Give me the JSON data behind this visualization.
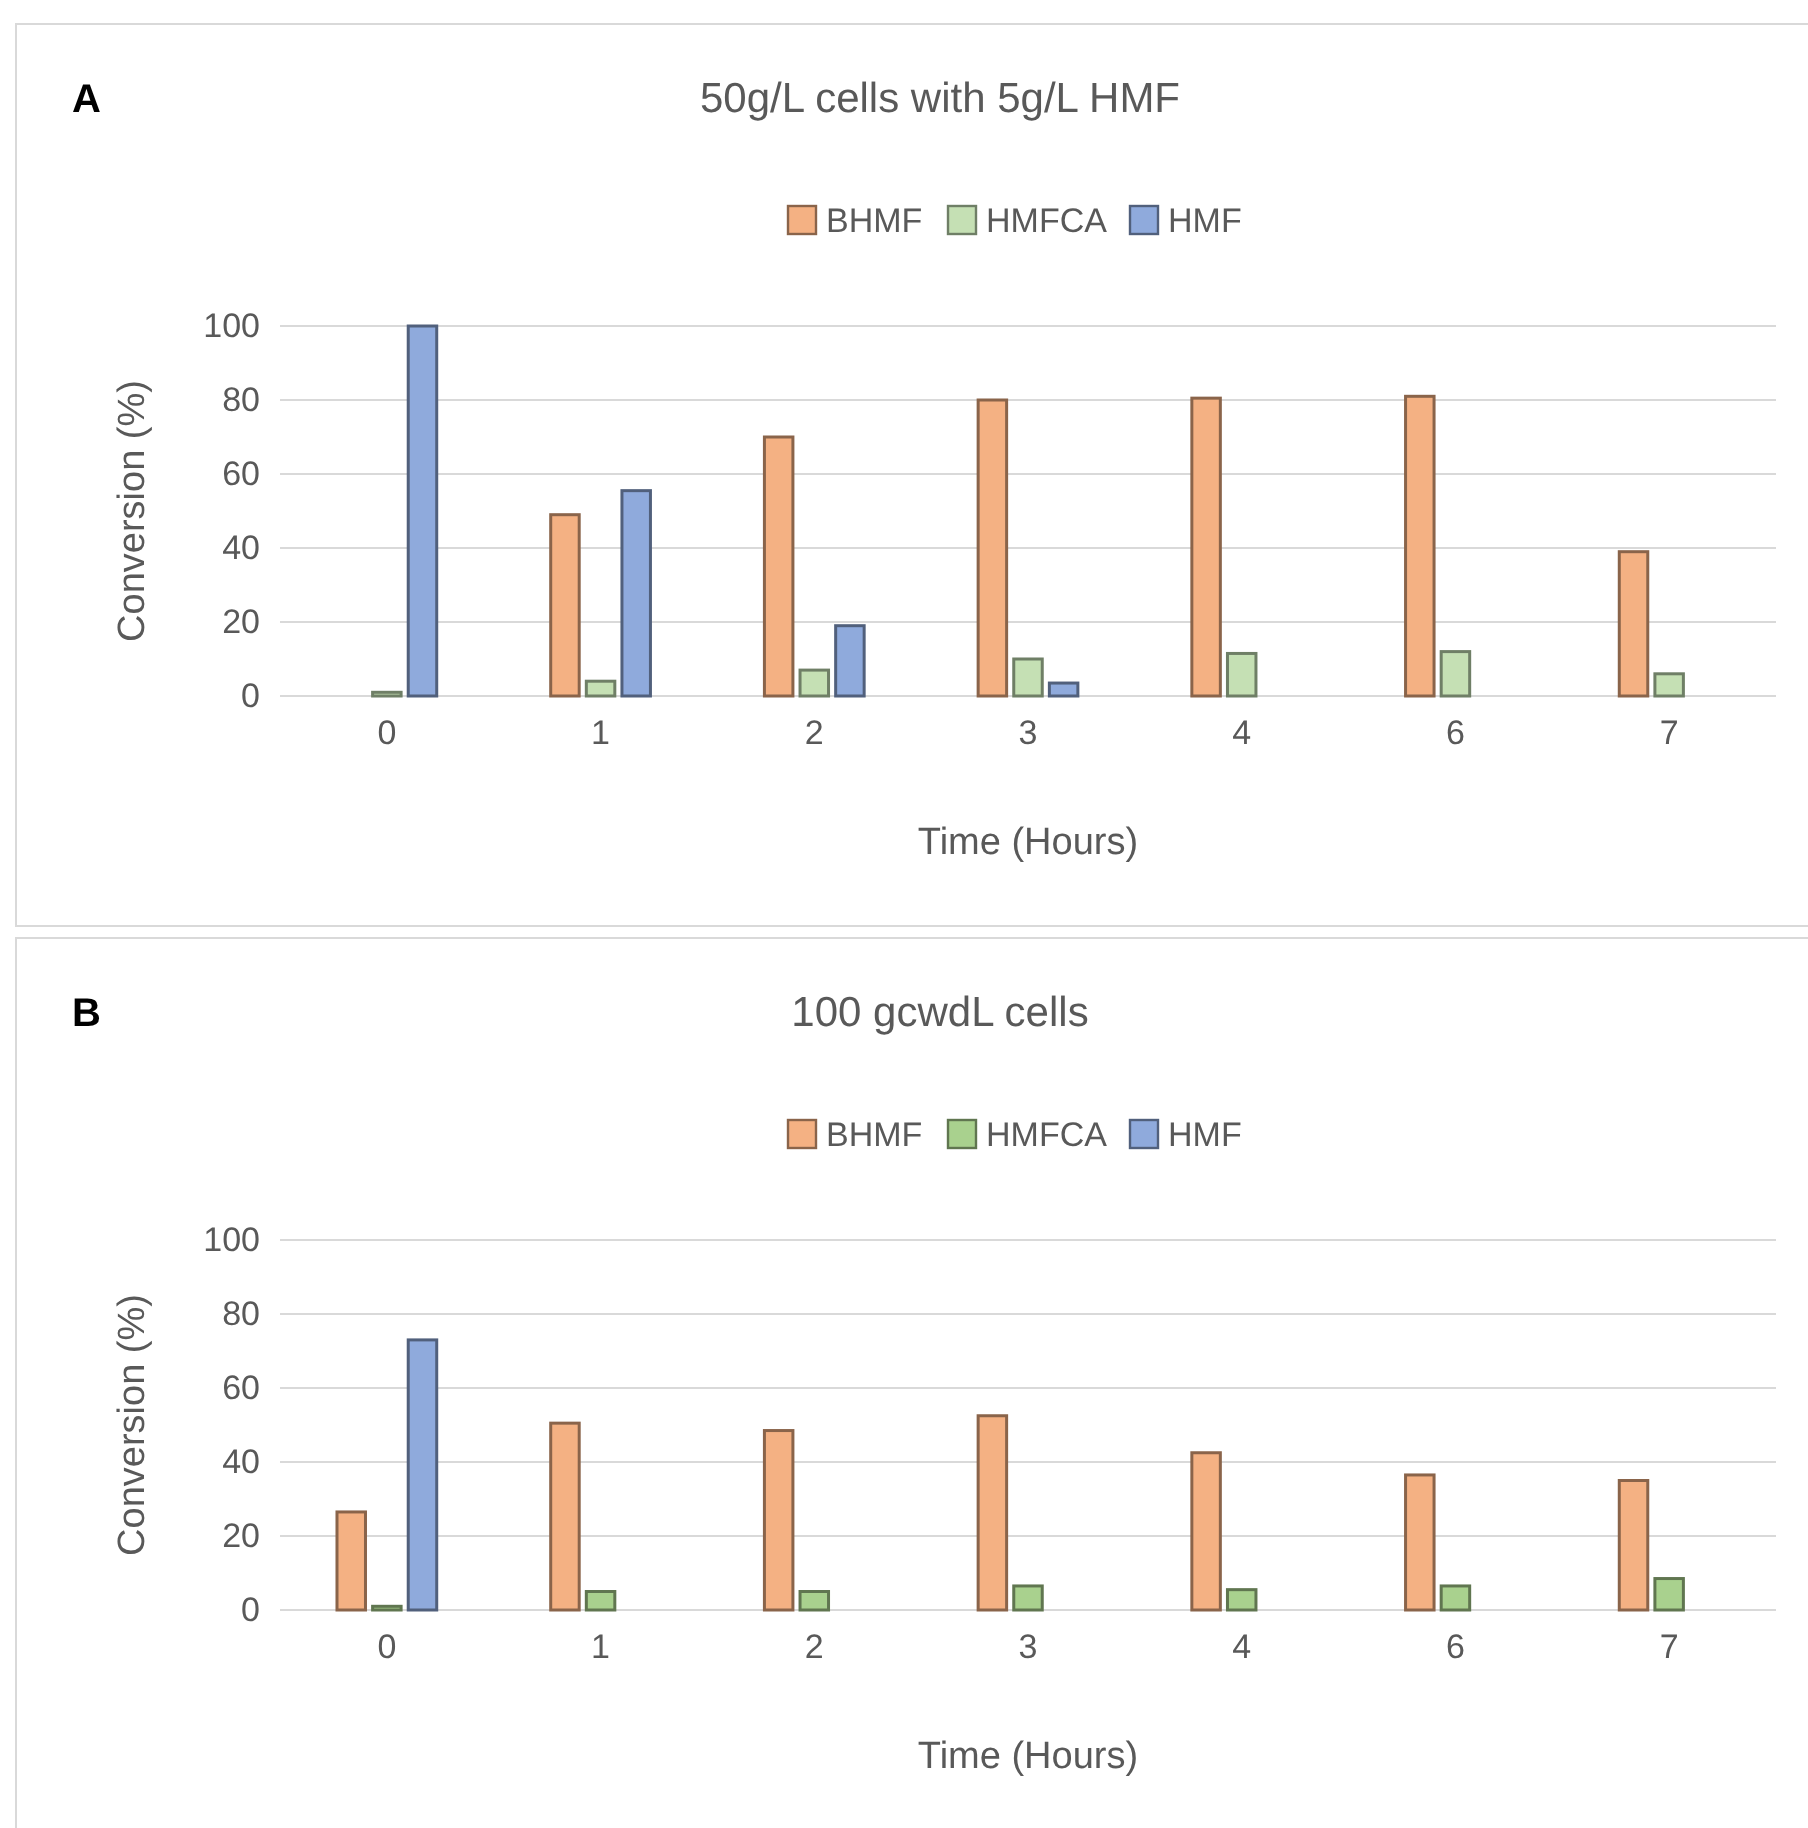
{
  "chart_data": [
    {
      "type": "bar",
      "title": "50g/L cells with 5g/L HMF",
      "xlabel": "Time (Hours)",
      "ylabel": "Conversion (%)",
      "annotations": [
        "A"
      ],
      "categories": [
        "0",
        "1",
        "2",
        "3",
        "4",
        "6",
        "7"
      ],
      "ylim": [
        0,
        100
      ],
      "yticks": [
        0,
        20,
        40,
        60,
        80,
        100
      ],
      "grid": "y",
      "legend": "top",
      "series": [
        {
          "name": "BHMF",
          "color": "#f4b183",
          "values": [
            0,
            49,
            70,
            80,
            80.5,
            81,
            39
          ]
        },
        {
          "name": "HMFCA",
          "color": "#c5e0b4",
          "values": [
            1,
            4,
            7,
            10,
            11.5,
            12,
            6
          ]
        },
        {
          "name": "HMF",
          "color": "#8faadc",
          "values": [
            100,
            55.5,
            19,
            3.5,
            0,
            0,
            0
          ]
        }
      ]
    },
    {
      "type": "bar",
      "title": "100 gcwdL cells",
      "xlabel": "Time (Hours)",
      "ylabel": "Conversion (%)",
      "annotations": [
        "B"
      ],
      "categories": [
        "0",
        "1",
        "2",
        "3",
        "4",
        "6",
        "7"
      ],
      "ylim": [
        0,
        100
      ],
      "yticks": [
        0,
        20,
        40,
        60,
        80,
        100
      ],
      "grid": "y",
      "legend": "top",
      "series": [
        {
          "name": "BHMF",
          "color": "#f4b183",
          "values": [
            26.5,
            50.5,
            48.5,
            52.5,
            42.5,
            36.5,
            35
          ]
        },
        {
          "name": "HMFCA",
          "color": "#a9d18e",
          "values": [
            1,
            5,
            5,
            6.5,
            5.5,
            6.5,
            8.5
          ]
        },
        {
          "name": "HMF",
          "color": "#8faadc",
          "values": [
            73,
            0,
            0,
            0,
            0,
            0,
            0
          ]
        }
      ]
    }
  ]
}
